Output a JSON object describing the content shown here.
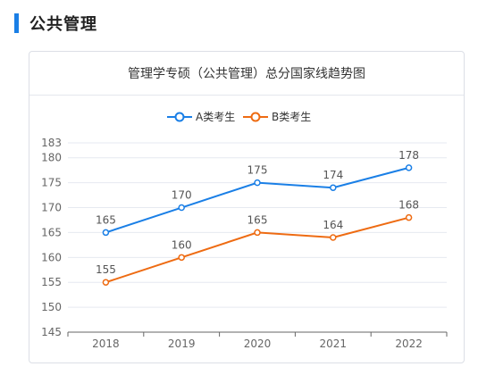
{
  "section": {
    "title": "公共管理"
  },
  "chart_data": {
    "type": "line",
    "title": "管理学专硕（公共管理）总分国家线趋势图",
    "categories": [
      "2018",
      "2019",
      "2020",
      "2021",
      "2022"
    ],
    "series": [
      {
        "name": "A类考生",
        "values": [
          165,
          170,
          175,
          174,
          178
        ],
        "color": "#1a7fe6"
      },
      {
        "name": "B类考生",
        "values": [
          155,
          160,
          165,
          164,
          168
        ],
        "color": "#ee6b12"
      }
    ],
    "ylim": [
      145,
      183
    ],
    "yticks": [
      145,
      150,
      155,
      160,
      165,
      170,
      175,
      180,
      183
    ],
    "legend_position": "top-center",
    "grid": true
  }
}
